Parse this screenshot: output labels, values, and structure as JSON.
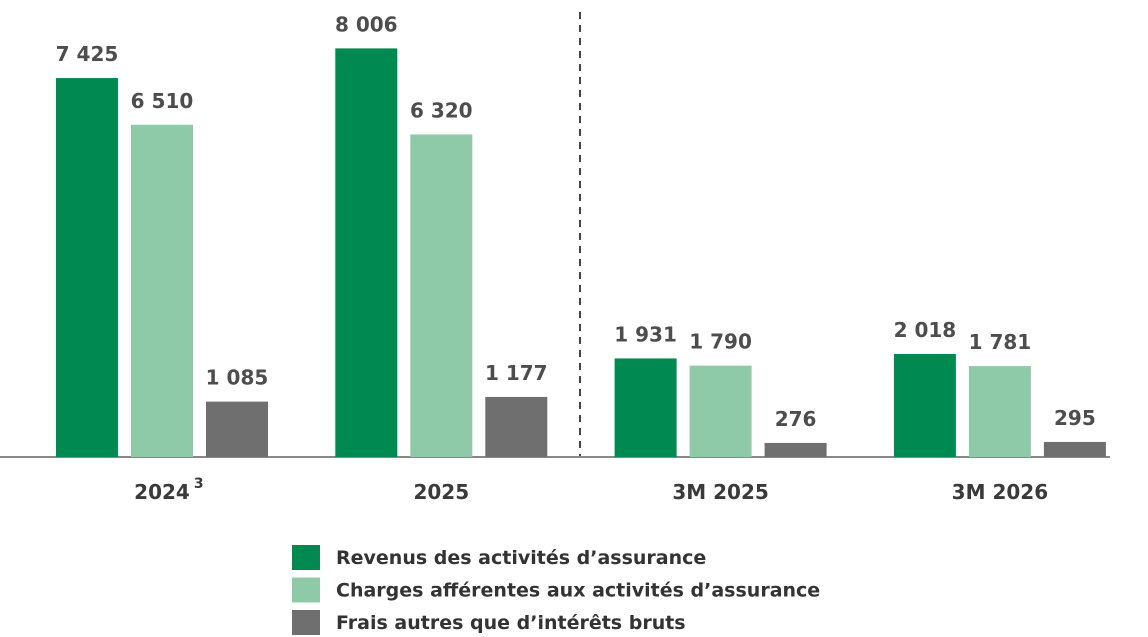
{
  "chart_data": {
    "type": "bar",
    "categories": [
      "2024",
      "2025",
      "3M 2025",
      "3M 2026"
    ],
    "category_superscripts": [
      "3",
      null,
      null,
      null
    ],
    "series": [
      {
        "name": "Revenus des activités d’assurance",
        "color": "#008a52",
        "values": [
          7425,
          8006,
          1931,
          2018
        ],
        "value_labels": [
          "7 425",
          "8 006",
          "1 931",
          "2 018"
        ]
      },
      {
        "name": "Charges afférentes aux activités d’assurance",
        "color": "#8fcaa8",
        "values": [
          6510,
          6320,
          1790,
          1781
        ],
        "value_labels": [
          "6 510",
          "6 320",
          "1 790",
          "1 781"
        ]
      },
      {
        "name": "Frais autres que d’intérêts bruts",
        "color": "#6f6f6f",
        "values": [
          1085,
          1177,
          276,
          295
        ],
        "value_labels": [
          "1 085",
          "1 177",
          "276",
          "295"
        ]
      }
    ]
  }
}
